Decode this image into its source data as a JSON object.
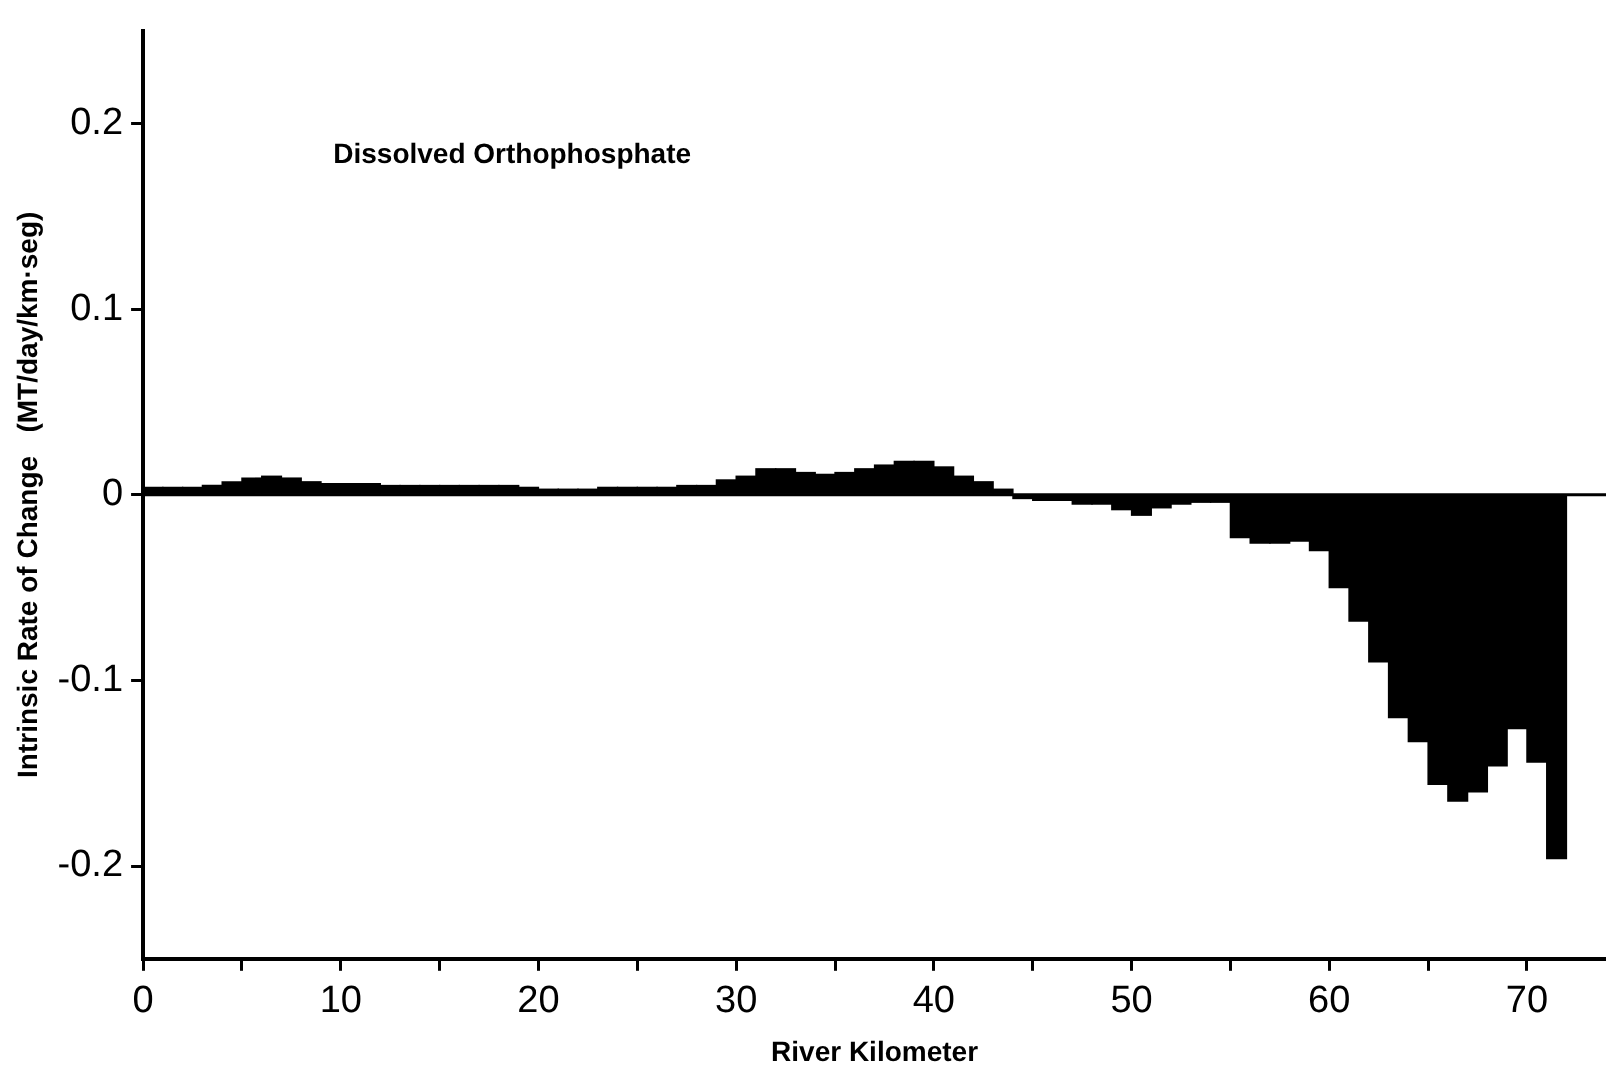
{
  "chart_data": {
    "type": "histogram",
    "xlabel": "River Kilometer",
    "ylabel": "Intrinsic Rate of Change   (MT/day/km·seg)",
    "annotations": [
      "Dissolved Orthophosphate"
    ],
    "bins": [
      0,
      1,
      2,
      3,
      4,
      5,
      6,
      7,
      8,
      9,
      10,
      11,
      12,
      13,
      14,
      15,
      16,
      17,
      18,
      19,
      20,
      21,
      22,
      23,
      24,
      25,
      26,
      27,
      28,
      29,
      30,
      31,
      32,
      33,
      34,
      35,
      36,
      37,
      38,
      39,
      40,
      41,
      42,
      43,
      44,
      45,
      46,
      47,
      48,
      49,
      50,
      51,
      52,
      53,
      54,
      55,
      56,
      57,
      58,
      59,
      60,
      61,
      62,
      63,
      64,
      65,
      66,
      67,
      68,
      69,
      70,
      71,
      72
    ],
    "values": [
      0.004,
      0.004,
      0.004,
      0.005,
      0.007,
      0.009,
      0.01,
      0.009,
      0.007,
      0.006,
      0.006,
      0.006,
      0.005,
      0.005,
      0.005,
      0.005,
      0.005,
      0.005,
      0.005,
      0.004,
      0.003,
      0.003,
      0.003,
      0.004,
      0.004,
      0.004,
      0.004,
      0.005,
      0.005,
      0.008,
      0.01,
      0.014,
      0.014,
      0.012,
      0.011,
      0.012,
      0.014,
      0.016,
      0.018,
      0.018,
      0.015,
      0.01,
      0.007,
      0.003,
      -0.002,
      -0.003,
      -0.003,
      -0.005,
      -0.005,
      -0.008,
      -0.011,
      -0.007,
      -0.005,
      -0.004,
      -0.004,
      -0.023,
      -0.026,
      -0.026,
      -0.025,
      -0.03,
      -0.05,
      -0.068,
      -0.09,
      -0.12,
      -0.133,
      -0.156,
      -0.165,
      -0.16,
      -0.146,
      -0.126,
      -0.144,
      -0.196
    ],
    "color": "#000000",
    "xlim": [
      0,
      74
    ],
    "xticks": [
      0,
      {
        "value": 5,
        "label": null
      },
      10,
      {
        "value": 15,
        "label": null
      },
      20,
      {
        "value": 25,
        "label": null
      },
      30,
      {
        "value": 35,
        "label": null
      },
      40,
      {
        "value": 45,
        "label": null
      },
      50,
      {
        "value": 55,
        "label": null
      },
      60,
      {
        "value": 65,
        "label": null
      },
      70
    ],
    "ylim": [
      -0.25,
      0.25
    ],
    "yticks": [
      -0.2,
      -0.1,
      0,
      0.1,
      0.2
    ],
    "ref_lines": [
      {
        "axis": "y",
        "value": 0,
        "color": "#000000"
      }
    ],
    "grid": false,
    "legend": false
  }
}
